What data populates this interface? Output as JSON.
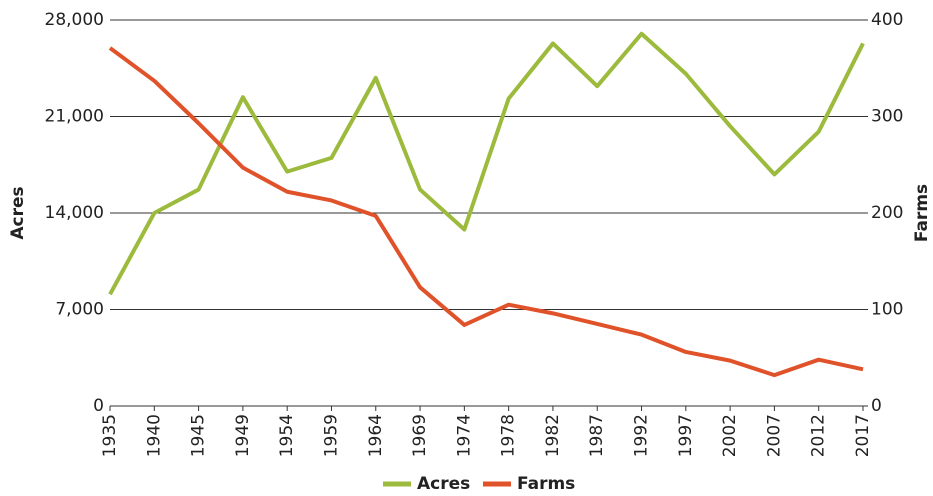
{
  "chart_data": {
    "type": "line",
    "categories": [
      "1935",
      "1940",
      "1945",
      "1949",
      "1954",
      "1959",
      "1964",
      "1969",
      "1974",
      "1978",
      "1982",
      "1987",
      "1992",
      "1997",
      "2002",
      "2007",
      "2012",
      "2017"
    ],
    "series": [
      {
        "name": "Acres",
        "color": "#9cba3c",
        "values": [
          8100,
          14000,
          15700,
          22400,
          17000,
          18000,
          23800,
          15700,
          12800,
          22300,
          26300,
          23200,
          27000,
          24100,
          20300,
          16800,
          19900,
          26300
        ]
      },
      {
        "name": "Farms",
        "color": "#e0522a",
        "axis": "y2",
        "values": [
          371,
          337,
          293,
          247,
          222,
          213,
          197,
          123,
          84,
          105,
          96,
          85,
          74,
          56,
          47,
          32,
          48,
          38
        ]
      }
    ],
    "ylabel": "Acres",
    "y2label": "Farms",
    "ylim": [
      0,
      28000
    ],
    "yticks": [
      0,
      {
        "value": 7000,
        "label": "7,000"
      },
      {
        "value": 14000,
        "label": "14,000"
      },
      {
        "value": 21000,
        "label": "21,000"
      },
      {
        "value": 28000,
        "label": "28,000"
      }
    ],
    "y2lim": [
      0,
      400
    ],
    "y2ticks": [
      0,
      100,
      200,
      300,
      400
    ],
    "grid": true,
    "legend": "bottom"
  }
}
